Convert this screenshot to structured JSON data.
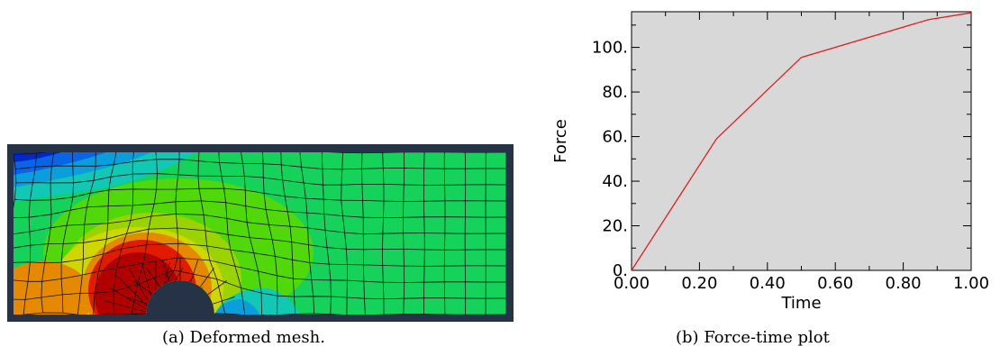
{
  "captions": {
    "a": "(a) Deformed mesh.",
    "b": "(b) Force-time plot"
  },
  "mesh": {
    "colors": {
      "frame": "#263246",
      "dark_red": "#b00000",
      "red": "#e01b00",
      "orange": "#e58a00",
      "yellow": "#cfd600",
      "yellow_green": "#9bd300",
      "light_green": "#50d80a",
      "green": "#14d25a",
      "cyan": "#10c8b4",
      "sky": "#0a9fdc",
      "blue": "#0a64e6",
      "deep_blue": "#0028c8",
      "mesh_line": "#111111"
    }
  },
  "chart_data": {
    "type": "line",
    "title": "",
    "xlabel": "Time",
    "ylabel": "Force",
    "xlim": [
      0,
      1
    ],
    "ylim": [
      0,
      116
    ],
    "xticks": [
      "0.00",
      "0.20",
      "0.40",
      "0.60",
      "0.80",
      "1.00"
    ],
    "yticks": [
      "0.",
      "20.",
      "40.",
      "60.",
      "80.",
      "100."
    ],
    "grid": false,
    "plot_background": "#d8d8d8",
    "series": [
      {
        "color": "#e02020",
        "x": [
          0,
          0.25,
          0.5,
          0.875,
          1.0
        ],
        "y": [
          0,
          59,
          95.5,
          112.5,
          115.5
        ]
      }
    ]
  }
}
